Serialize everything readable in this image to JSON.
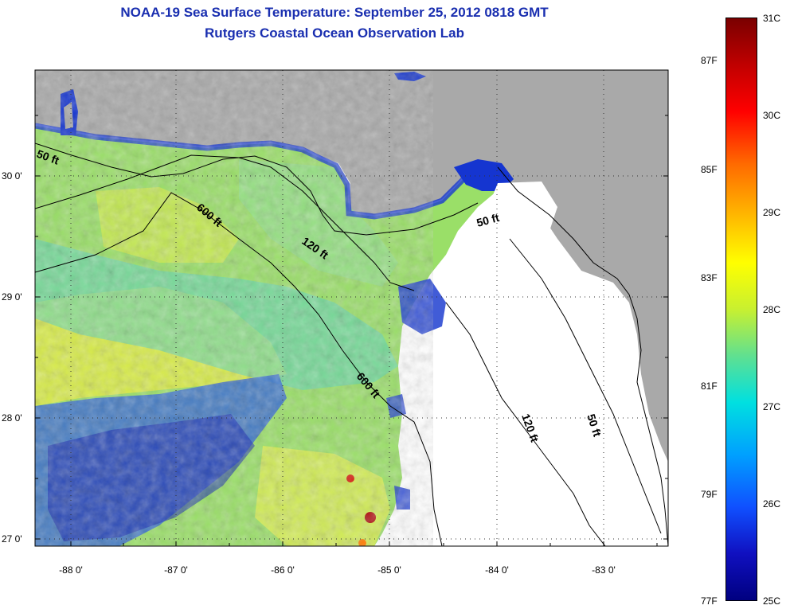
{
  "title": "NOAA-19 Sea Surface Temperature:  September 25, 2012 0818 GMT",
  "subtitle": "Rutgers Coastal Ocean Observation Lab",
  "map": {
    "lon_labels": [
      "-88 0'",
      "-87 0'",
      "-86 0'",
      "-85 0'",
      "-84 0'",
      "-83 0'"
    ],
    "lat_labels": [
      "30 0'",
      "29 0'",
      "28 0'",
      "27 0'"
    ],
    "contour_labels": [
      "50 ft",
      "600 ft",
      "120 ft",
      "50 ft",
      "600 ft",
      "120 ft",
      "50 ft"
    ]
  },
  "colorbar": {
    "fahrenheit": [
      "87F",
      "85F",
      "83F",
      "81F",
      "79F",
      "77F"
    ],
    "celsius": [
      "31C",
      "30C",
      "29C",
      "28C",
      "27C",
      "26C",
      "25C"
    ]
  }
}
